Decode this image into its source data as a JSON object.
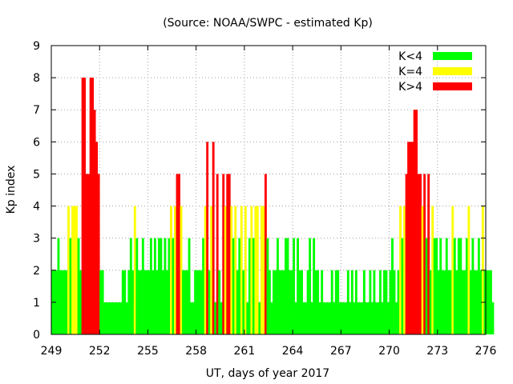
{
  "chart_data": {
    "type": "bar",
    "title": "(Source: NOAA/SWPC - estimated Kp)",
    "xlabel": "UT, days of year 2017",
    "ylabel": "Kp index",
    "xlim": [
      249,
      276
    ],
    "ylim": [
      0,
      9
    ],
    "x_ticks": [
      "249",
      "252",
      "255",
      "258",
      "261",
      "264",
      "267",
      "270",
      "273",
      "276"
    ],
    "y_ticks": [
      "0",
      "1",
      "2",
      "3",
      "4",
      "5",
      "6",
      "7",
      "8",
      "9"
    ],
    "grid": true,
    "legend_position": "top-right",
    "bar_width_days": 0.125,
    "legend": [
      {
        "label": "K<4",
        "color": "#00ff00"
      },
      {
        "label": "K=4",
        "color": "#ffff00"
      },
      {
        "label": "K>4",
        "color": "#ff0000"
      }
    ],
    "colors": {
      "low": "#00ff00",
      "mid": "#ffff00",
      "high": "#ff0000"
    },
    "start_day": 249,
    "kp_values": [
      2,
      2,
      2,
      3,
      2,
      2,
      2,
      2,
      4,
      3,
      4,
      4,
      4,
      3,
      2,
      8,
      8,
      5,
      5,
      8,
      8,
      7,
      6,
      5,
      2,
      2,
      1,
      1,
      1,
      1,
      1,
      1,
      1,
      1,
      1,
      2,
      2,
      1,
      2,
      3,
      2,
      4,
      3,
      2,
      2,
      3,
      2,
      2,
      2,
      3,
      2,
      3,
      2,
      3,
      3,
      2,
      3,
      2,
      3,
      4,
      3,
      4,
      5,
      5,
      4,
      2,
      2,
      2,
      3,
      1,
      1,
      2,
      2,
      2,
      2,
      3,
      4,
      6,
      2,
      4,
      6,
      1,
      5,
      2,
      1,
      5,
      4,
      5,
      5,
      4,
      3,
      4,
      2,
      3,
      4,
      2,
      4,
      1,
      3,
      4,
      3,
      4,
      4,
      1,
      4,
      4,
      5,
      3,
      2,
      1,
      2,
      2,
      3,
      2,
      2,
      2,
      3,
      3,
      2,
      2,
      3,
      1,
      3,
      2,
      2,
      1,
      1,
      2,
      3,
      1,
      3,
      2,
      2,
      1,
      2,
      1,
      1,
      1,
      1,
      2,
      1,
      2,
      2,
      1,
      1,
      1,
      1,
      2,
      1,
      2,
      1,
      2,
      1,
      1,
      1,
      2,
      1,
      1,
      2,
      1,
      2,
      1,
      1,
      2,
      1,
      2,
      2,
      1,
      2,
      3,
      2,
      1,
      2,
      4,
      3,
      4,
      5,
      6,
      6,
      6,
      7,
      7,
      5,
      5,
      4,
      5,
      3,
      5,
      2,
      4,
      3,
      3,
      2,
      3,
      2,
      2,
      3,
      2,
      2,
      4,
      3,
      2,
      3,
      3,
      2,
      2,
      3,
      4,
      2,
      3,
      2,
      2,
      3,
      2,
      4,
      2,
      2,
      2,
      2,
      1
    ]
  }
}
